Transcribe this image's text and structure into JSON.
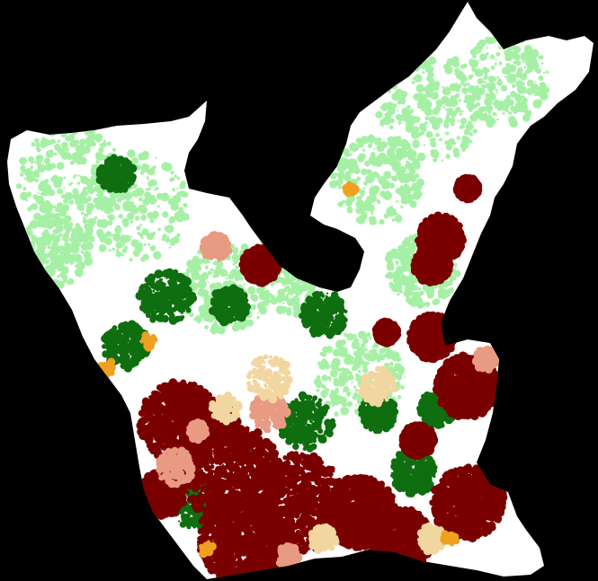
{
  "map": {
    "background_color": "#000000",
    "classes": [
      {
        "id": "unclassified",
        "color": "#ffffff"
      },
      {
        "id": "light-green",
        "color": "#a6f0a6"
      },
      {
        "id": "dark-green",
        "color": "#0f6e0f"
      },
      {
        "id": "dark-red",
        "color": "#7a0000"
      },
      {
        "id": "salmon",
        "color": "#e89a82"
      },
      {
        "id": "tan",
        "color": "#f2d6a0"
      },
      {
        "id": "orange",
        "color": "#f0a020"
      }
    ]
  }
}
